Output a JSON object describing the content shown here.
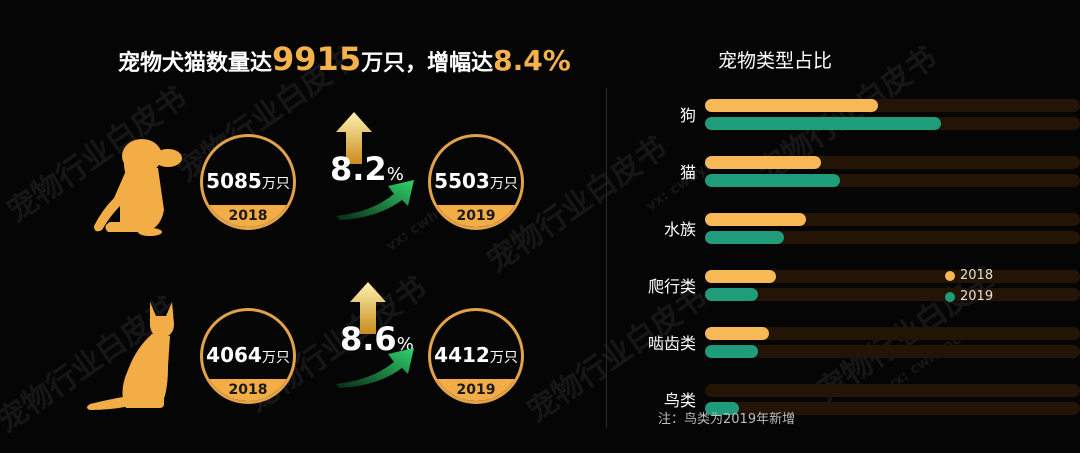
{
  "headline": {
    "part1": "宠物犬猫数量达",
    "number": "9915",
    "unit": "万只，增幅达",
    "pct": "8.4%"
  },
  "watermark": {
    "text": "宠物行业白皮书",
    "small": "vx: cwhync"
  },
  "dog": {
    "y2018": {
      "value": "5085",
      "unit": "万只",
      "year": "2018"
    },
    "y2019": {
      "value": "5503",
      "unit": "万只",
      "year": "2019"
    },
    "growth": {
      "value": "8.2",
      "pct": "%"
    }
  },
  "cat": {
    "y2018": {
      "value": "4064",
      "unit": "万只",
      "year": "2018"
    },
    "y2019": {
      "value": "4412",
      "unit": "万只",
      "year": "2019"
    },
    "growth": {
      "value": "8.6",
      "pct": "%"
    }
  },
  "colors": {
    "accent": "#f3ad47",
    "y2018": "#f7b856",
    "y2019": "#1f9c7a",
    "track": "#241405"
  },
  "chart_data": {
    "type": "bar",
    "orientation": "horizontal",
    "title": "宠物类型占比",
    "categories": [
      "狗",
      "猫",
      "水族",
      "爬行类",
      "啮齿类",
      "鸟类"
    ],
    "series": [
      {
        "name": "2018",
        "values": [
          0.46,
          0.31,
          0.27,
          0.19,
          0.17,
          null
        ]
      },
      {
        "name": "2019",
        "values": [
          0.63,
          0.36,
          0.21,
          0.14,
          0.14,
          0.09
        ]
      }
    ],
    "xlim": [
      0,
      1
    ],
    "legend_position": "right",
    "note": "注：鸟类为2019年新增"
  }
}
